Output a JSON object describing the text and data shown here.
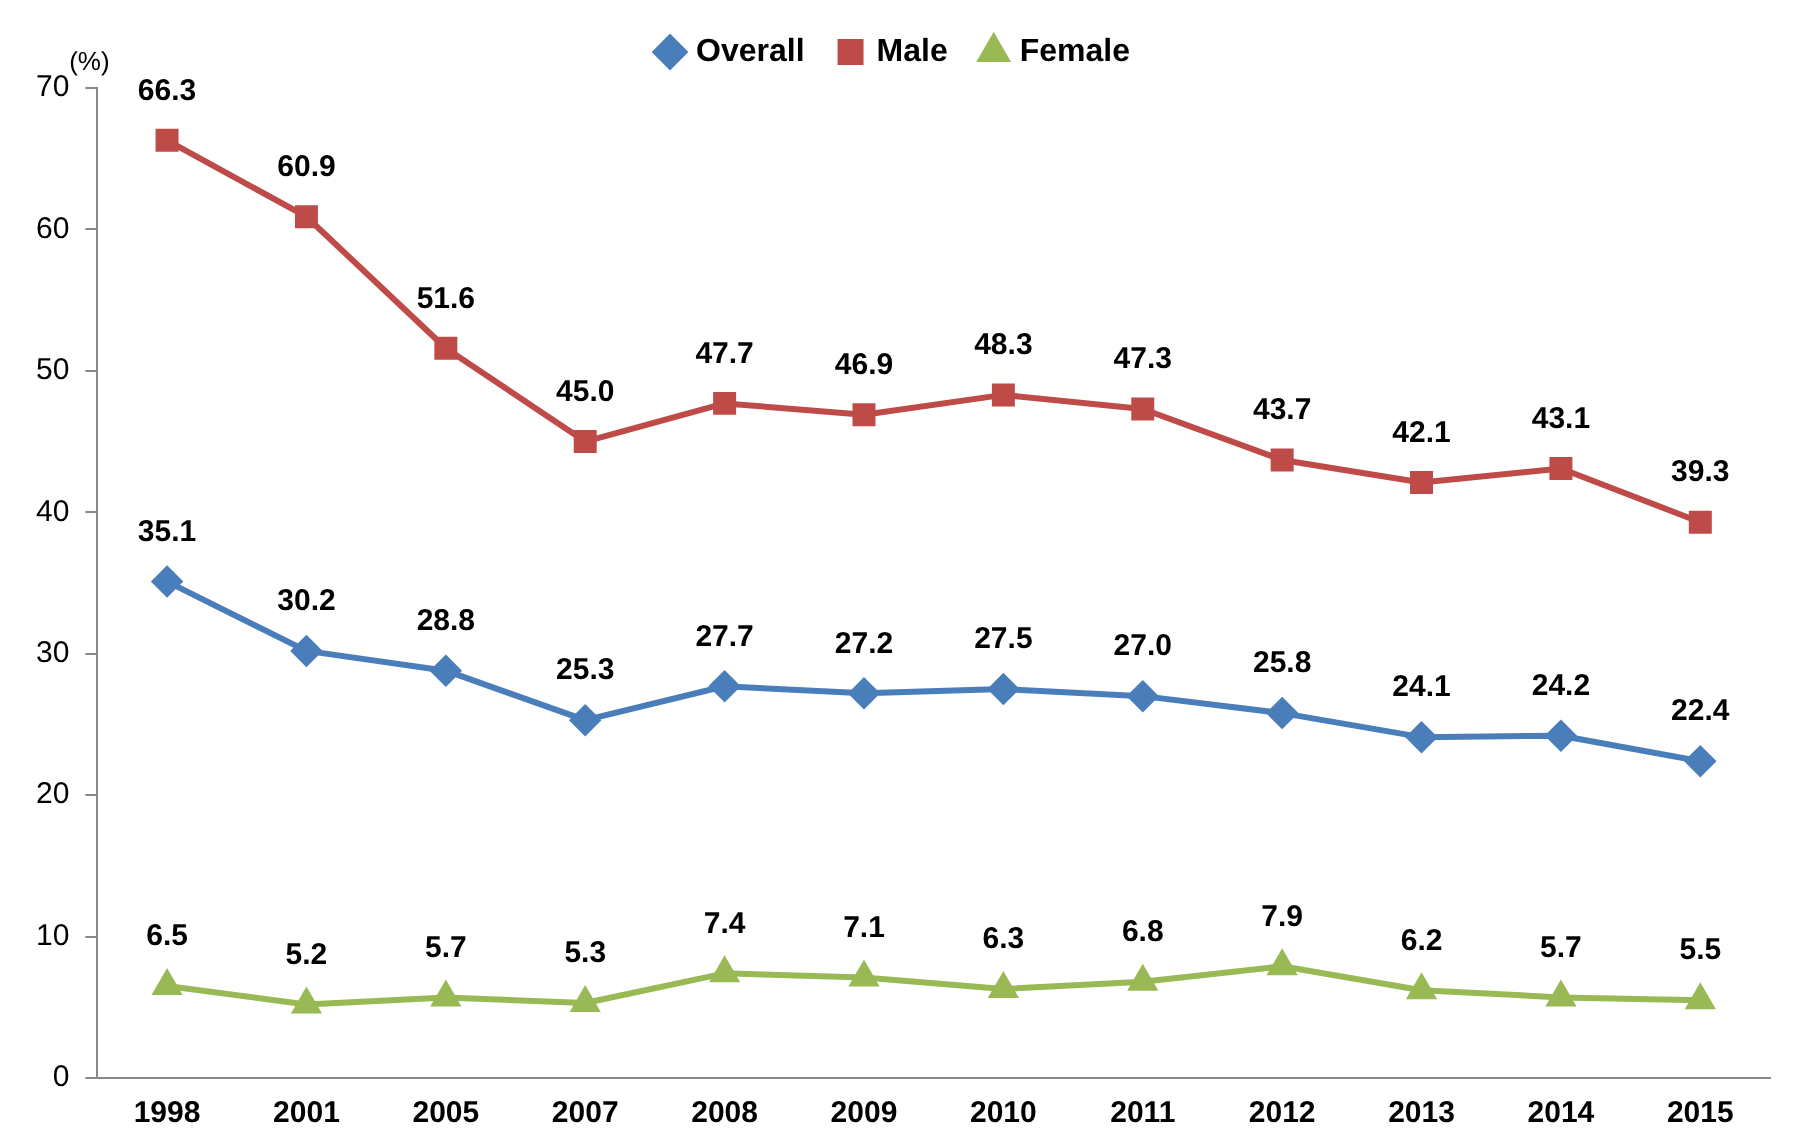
{
  "chart_data": {
    "type": "line",
    "ylabel": "(%)",
    "categories": [
      "1998",
      "2001",
      "2005",
      "2007",
      "2008",
      "2009",
      "2010",
      "2011",
      "2012",
      "2013",
      "2014",
      "2015"
    ],
    "series": [
      {
        "name": "Overall",
        "color": "#4a7ebb",
        "marker": "diamond",
        "values": [
          35.1,
          30.2,
          28.8,
          25.3,
          27.7,
          27.2,
          27.5,
          27.0,
          25.8,
          24.1,
          24.2,
          22.4
        ],
        "value_labels": [
          "35.1",
          "30.2",
          "28.8",
          "25.3",
          "27.7",
          "27.2",
          "27.5",
          "27.0",
          "25.8",
          "24.1",
          "24.2",
          "22.4"
        ]
      },
      {
        "name": "Male",
        "color": "#be4b48",
        "marker": "square",
        "values": [
          66.3,
          60.9,
          51.6,
          45.0,
          47.7,
          46.9,
          48.3,
          47.3,
          43.7,
          42.1,
          43.1,
          39.3
        ],
        "value_labels": [
          "66.3",
          "60.9",
          "51.6",
          "45.0",
          "47.7",
          "46.9",
          "48.3",
          "47.3",
          "43.7",
          "42.1",
          "43.1",
          "39.3"
        ]
      },
      {
        "name": "Female",
        "color": "#98b954",
        "marker": "triangle",
        "values": [
          6.5,
          5.2,
          5.7,
          5.3,
          7.4,
          7.1,
          6.3,
          6.8,
          7.9,
          6.2,
          5.7,
          5.5
        ],
        "value_labels": [
          "6.5",
          "5.2",
          "5.7",
          "5.3",
          "7.4",
          "7.1",
          "6.3",
          "6.8",
          "7.9",
          "6.2",
          "5.7",
          "5.5"
        ]
      }
    ],
    "ylim": [
      0,
      70
    ],
    "yticks": [
      0,
      10,
      20,
      30,
      40,
      50,
      60,
      70
    ],
    "grid": false,
    "legend": "top",
    "line_style": "solid"
  }
}
